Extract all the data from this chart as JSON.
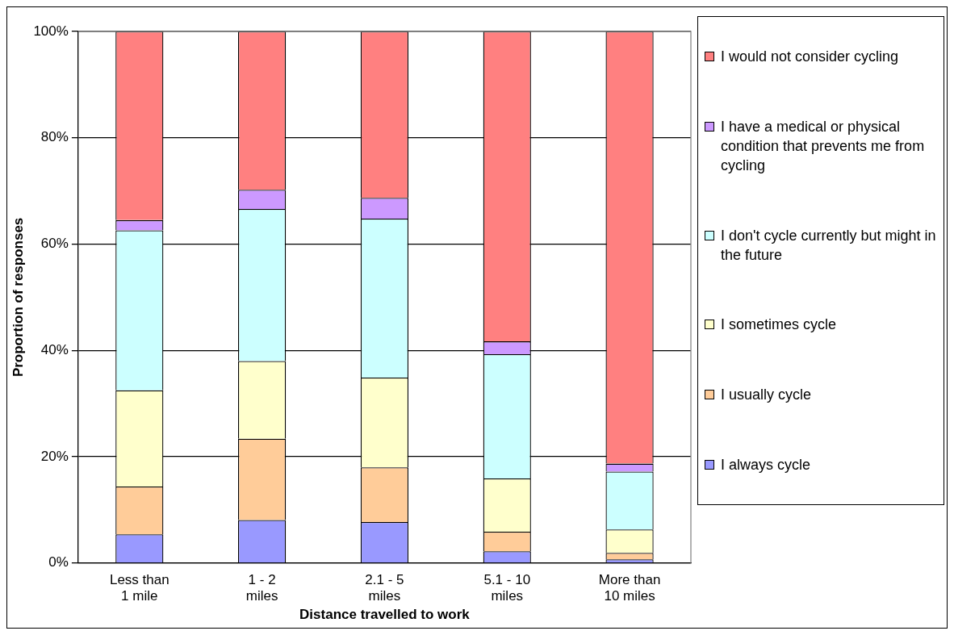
{
  "chart_data": {
    "type": "bar",
    "stacked": true,
    "xlabel": "Distance travelled to work",
    "ylabel": "Proportion of responses",
    "categories": [
      "Less than 1 mile",
      "1 - 2 miles",
      "2.1 - 5 miles",
      "5.1 - 10 miles",
      "More than 10 miles"
    ],
    "series": [
      {
        "name": "I always cycle",
        "color": "#9999ff",
        "values": [
          5.4,
          8.1,
          7.7,
          2.2,
          0.7
        ]
      },
      {
        "name": "I usually cycle",
        "color": "#ffcc99",
        "values": [
          9.0,
          15.3,
          10.3,
          3.7,
          1.2
        ]
      },
      {
        "name": "I sometimes cycle",
        "color": "#ffffcc",
        "values": [
          18.1,
          14.6,
          16.9,
          10.0,
          4.4
        ]
      },
      {
        "name": "I don't cycle currently but might in the future",
        "color": "#ccffff",
        "values": [
          30.1,
          28.6,
          29.9,
          23.4,
          10.9
        ]
      },
      {
        "name": "I have a medical or physical condition that prevents me from cycling",
        "color": "#cc99ff",
        "values": [
          1.9,
          3.6,
          3.9,
          2.4,
          1.5
        ]
      },
      {
        "name": "I would not consider cycling",
        "color": "#ff8080",
        "values": [
          35.5,
          29.8,
          31.3,
          58.3,
          81.3
        ]
      }
    ],
    "ylim": [
      0,
      100
    ],
    "yticks": [
      {
        "value": 0,
        "label": "0%"
      },
      {
        "value": 20,
        "label": "20%"
      },
      {
        "value": 40,
        "label": "40%"
      },
      {
        "value": 60,
        "label": "60%"
      },
      {
        "value": 80,
        "label": "80%"
      },
      {
        "value": 100,
        "label": "100%"
      }
    ],
    "grid": "y",
    "legend": "right"
  }
}
